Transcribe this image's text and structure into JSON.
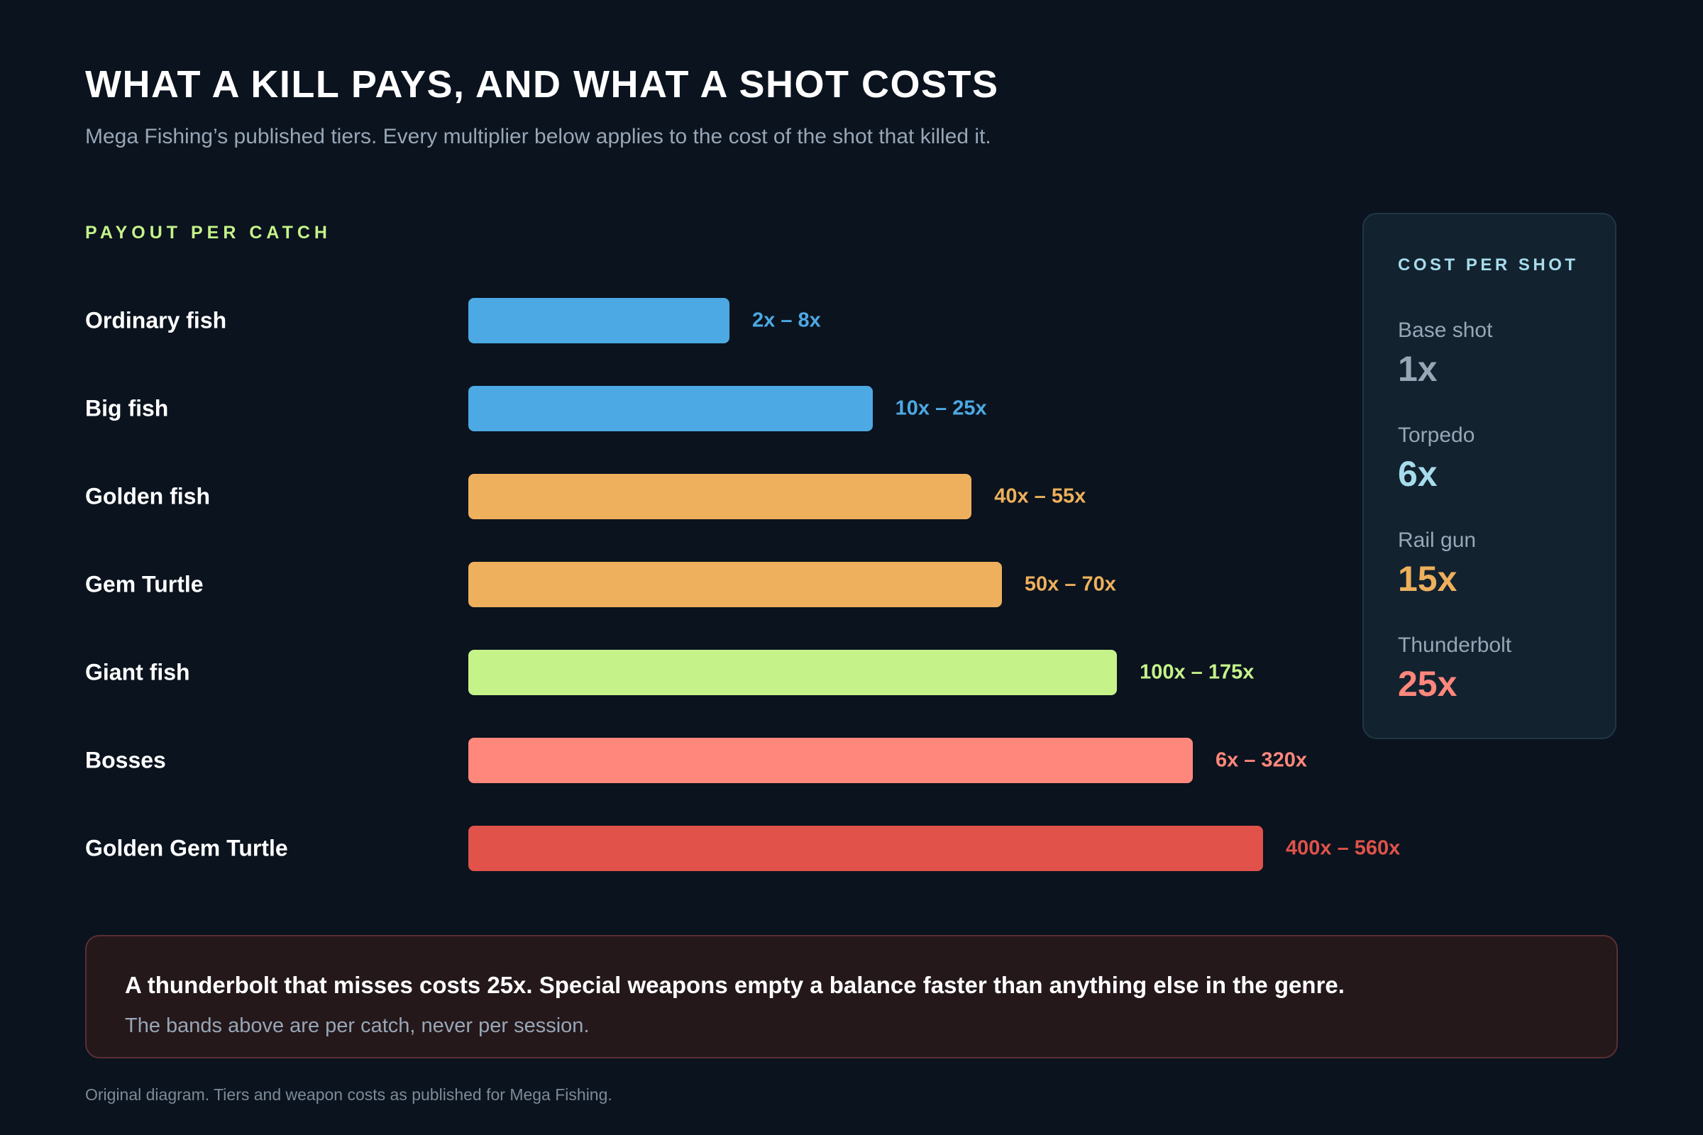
{
  "title": "WHAT A KILL PAYS, AND WHAT A SHOT COSTS",
  "subtitle": "Mega Fishing’s published tiers. Every multiplier below applies to the cost of the shot that killed it.",
  "chart_data": {
    "type": "bar",
    "orientation": "horizontal",
    "section_label": "PAYOUT PER CATCH",
    "categories": [
      "Ordinary fish",
      "Big fish",
      "Golden fish",
      "Gem Turtle",
      "Giant fish",
      "Bosses",
      "Golden Gem Turtle"
    ],
    "value_labels": [
      "2x – 8x",
      "10x – 25x",
      "40x – 55x",
      "50x – 70x",
      "100x – 175x",
      "6x – 320x",
      "400x – 560x"
    ],
    "ranges": [
      [
        2,
        8
      ],
      [
        10,
        25
      ],
      [
        40,
        55
      ],
      [
        50,
        70
      ],
      [
        100,
        175
      ],
      [
        6,
        320
      ],
      [
        400,
        560
      ]
    ],
    "colors": [
      "#4da9e3",
      "#4da9e3",
      "#eeb05c",
      "#eeb05c",
      "#c5f38a",
      "#ff877b",
      "#e0524a"
    ],
    "scale": "log"
  },
  "cost_panel": {
    "title": "COST PER SHOT",
    "items": [
      {
        "name": "Base shot",
        "value": "1x",
        "color": "#98a6b6"
      },
      {
        "name": "Torpedo",
        "value": "6x",
        "color": "#a6dcec"
      },
      {
        "name": "Rail gun",
        "value": "15x",
        "color": "#eeb05c"
      },
      {
        "name": "Thunderbolt",
        "value": "25x",
        "color": "#ff877b"
      }
    ]
  },
  "note": {
    "headline": "A thunderbolt that misses costs 25x. Special weapons empty a balance faster than anything else in the genre.",
    "body": "The bands above are per catch, never per session."
  },
  "footer": "Original diagram. Tiers and weapon costs as published for Mega Fishing."
}
